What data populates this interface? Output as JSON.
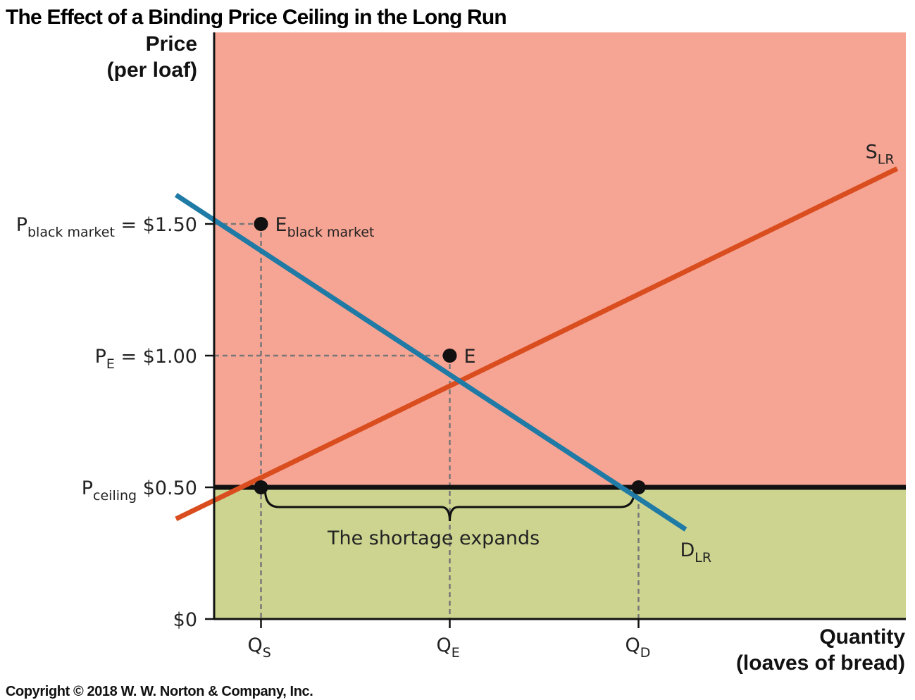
{
  "chart_data": {
    "type": "line",
    "title": "The Effect of a Binding Price Ceiling in the Long Run",
    "ylabel_line1": "Price",
    "ylabel_line2": "(per loaf)",
    "xlabel_line1": "Quantity",
    "xlabel_line2": "(loaves of bread)",
    "ylim": [
      0,
      2.0
    ],
    "y_ticks": [
      {
        "value": 1.5,
        "main": "P",
        "sub": "black market",
        "suffix": " = $1.50"
      },
      {
        "value": 1.0,
        "main": "P",
        "sub": "E",
        "suffix": " = $1.00"
      },
      {
        "value": 0.5,
        "main": "P",
        "sub": "ceiling",
        "suffix": " $0.50"
      },
      {
        "value": 0.0,
        "main": "",
        "sub": "",
        "suffix": "$0"
      }
    ],
    "x_ticks": [
      {
        "value": 1,
        "main": "Q",
        "sub": "S"
      },
      {
        "value": 3,
        "main": "Q",
        "sub": "E"
      },
      {
        "value": 5,
        "main": "Q",
        "sub": "D"
      }
    ],
    "series": [
      {
        "name_main": "S",
        "name_sub": "LR",
        "color": "#d94d1f",
        "points": [
          [
            0.1,
            0.38
          ],
          [
            7.74,
            1.71
          ]
        ]
      },
      {
        "name_main": "D",
        "name_sub": "LR",
        "color": "#1f7aa5",
        "points": [
          [
            0.1,
            1.61
          ],
          [
            5.5,
            0.34
          ]
        ]
      }
    ],
    "price_ceiling": {
      "value": 0.5,
      "color": "#111111"
    },
    "regions": {
      "above_ceiling_color": "#f6a594",
      "below_ceiling_color": "#cdd490"
    },
    "points": [
      {
        "x": 1,
        "y": 1.5,
        "main": "E",
        "sub": "black market"
      },
      {
        "x": 3,
        "y": 1.0,
        "main": "E",
        "sub": ""
      },
      {
        "x": 1,
        "y": 0.5,
        "main": "",
        "sub": ""
      },
      {
        "x": 5,
        "y": 0.5,
        "main": "",
        "sub": ""
      }
    ],
    "annotation": "The shortage expands",
    "copyright": "Copyright © 2018 W. W. Norton & Company, Inc."
  }
}
